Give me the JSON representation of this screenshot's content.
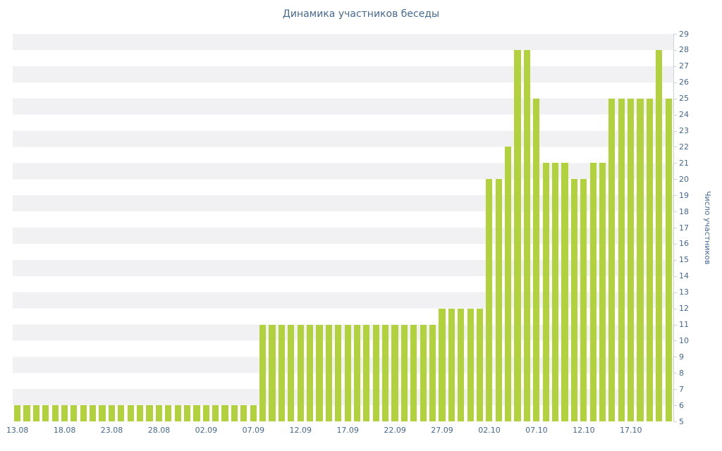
{
  "colors": {
    "bar": "#b1d23c",
    "axis_text": "#45688e",
    "stripe": "#f1f1f4",
    "axis_line": "#ccd2db",
    "background": "#ffffff"
  },
  "chart_data": {
    "type": "bar",
    "title": "Динамика участников беседы",
    "xlabel": "",
    "ylabel": "Число участников",
    "ylim": [
      5,
      29
    ],
    "yticks": [
      5,
      6,
      7,
      8,
      9,
      10,
      11,
      12,
      13,
      14,
      15,
      16,
      17,
      18,
      19,
      20,
      21,
      22,
      23,
      24,
      25,
      26,
      27,
      28,
      29
    ],
    "grid": "horizontal-stripes",
    "legend": "none",
    "x_tick_labels": [
      "13.08",
      "18.08",
      "23.08",
      "28.08",
      "02.09",
      "07.09",
      "12.09",
      "17.09",
      "22.09",
      "27.09",
      "02.10",
      "07.10",
      "12.10",
      "17.10"
    ],
    "x_tick_every": 5,
    "values": [
      6,
      6,
      6,
      6,
      6,
      6,
      6,
      6,
      6,
      6,
      6,
      6,
      6,
      6,
      6,
      6,
      6,
      6,
      6,
      6,
      6,
      6,
      6,
      6,
      6,
      6,
      11,
      11,
      11,
      11,
      11,
      11,
      11,
      11,
      11,
      11,
      11,
      11,
      11,
      11,
      11,
      11,
      11,
      11,
      11,
      12,
      12,
      12,
      12,
      12,
      20,
      20,
      22,
      28,
      28,
      25,
      21,
      21,
      21,
      20,
      20,
      21,
      21,
      25,
      25,
      25,
      25,
      25,
      28,
      25
    ]
  }
}
